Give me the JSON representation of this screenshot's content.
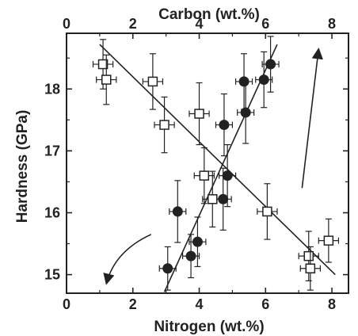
{
  "chart_data": {
    "type": "scatter",
    "title": "",
    "xlabel_bottom": "Nitrogen (wt.%)",
    "xlabel_top": "Carbon (wt.%)",
    "ylabel": "Hardness (GPa)",
    "xlim": [
      0,
      8.5
    ],
    "xlim_top": [
      0,
      8.5
    ],
    "ylim": [
      14.7,
      18.9
    ],
    "xticks_bottom": [
      "0",
      "2",
      "4",
      "6",
      "8"
    ],
    "xticks_top": [
      "0",
      "2",
      "4",
      "6",
      "8"
    ],
    "yticks": [
      "15",
      "16",
      "17",
      "18"
    ],
    "grid": false,
    "series": [
      {
        "marker": "filled-circle",
        "axis": "bottom",
        "points": [
          {
            "x": 3.05,
            "y": 15.1,
            "xerr": 0.25,
            "yerr": 0.35
          },
          {
            "x": 3.35,
            "y": 16.02,
            "xerr": 0.25,
            "yerr": 0.5
          },
          {
            "x": 3.75,
            "y": 15.3,
            "xerr": 0.25,
            "yerr": 0.35
          },
          {
            "x": 3.95,
            "y": 15.53,
            "xerr": 0.25,
            "yerr": 0.4
          },
          {
            "x": 4.72,
            "y": 16.22,
            "xerr": 0.25,
            "yerr": 0.5
          },
          {
            "x": 4.75,
            "y": 17.42,
            "xerr": 0.25,
            "yerr": 0.5
          },
          {
            "x": 4.85,
            "y": 16.6,
            "xerr": 0.25,
            "yerr": 0.5
          },
          {
            "x": 5.35,
            "y": 18.12,
            "xerr": 0.25,
            "yerr": 0.45
          },
          {
            "x": 5.4,
            "y": 17.62,
            "xerr": 0.25,
            "yerr": 0.5
          },
          {
            "x": 5.95,
            "y": 18.15,
            "xerr": 0.25,
            "yerr": 0.45
          },
          {
            "x": 6.15,
            "y": 18.4,
            "xerr": 0.25,
            "yerr": 0.45
          }
        ]
      },
      {
        "marker": "open-square",
        "axis": "top",
        "points": [
          {
            "x": 1.1,
            "y": 18.4,
            "xerr": 0.3,
            "yerr": 0.4
          },
          {
            "x": 1.2,
            "y": 18.15,
            "xerr": 0.3,
            "yerr": 0.4
          },
          {
            "x": 2.6,
            "y": 18.12,
            "xerr": 0.3,
            "yerr": 0.45
          },
          {
            "x": 2.95,
            "y": 17.42,
            "xerr": 0.3,
            "yerr": 0.45
          },
          {
            "x": 4.0,
            "y": 17.6,
            "xerr": 0.3,
            "yerr": 0.5
          },
          {
            "x": 4.15,
            "y": 16.6,
            "xerr": 0.3,
            "yerr": 0.45
          },
          {
            "x": 4.4,
            "y": 16.22,
            "xerr": 0.3,
            "yerr": 0.45
          },
          {
            "x": 6.05,
            "y": 16.02,
            "xerr": 0.3,
            "yerr": 0.45
          },
          {
            "x": 7.3,
            "y": 15.3,
            "xerr": 0.3,
            "yerr": 0.4
          },
          {
            "x": 7.35,
            "y": 15.1,
            "xerr": 0.3,
            "yerr": 0.35
          },
          {
            "x": 7.9,
            "y": 15.55,
            "xerr": 0.3,
            "yerr": 0.35
          }
        ]
      }
    ],
    "fit_lines": [
      {
        "series": 0,
        "from": [
          2.95,
          14.72
        ],
        "to": [
          6.35,
          18.72
        ]
      },
      {
        "series": 1,
        "from": [
          1.0,
          18.72
        ],
        "to": [
          8.1,
          15.0
        ]
      }
    ],
    "annotations": [
      {
        "type": "arrow",
        "direction": "up-right",
        "from": [
          7.1,
          16.4
        ],
        "to": [
          7.6,
          18.65
        ]
      },
      {
        "type": "curved-arrow",
        "direction": "down-left",
        "from": [
          2.55,
          15.65
        ],
        "to": [
          1.2,
          14.85
        ]
      }
    ]
  }
}
